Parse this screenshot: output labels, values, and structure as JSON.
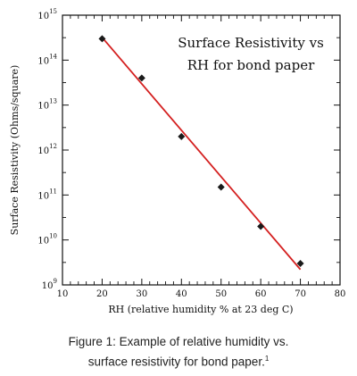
{
  "chart_data": {
    "type": "scatter",
    "title_lines": [
      "Surface Resistivity vs",
      "RH for bond paper"
    ],
    "xlabel": "RH (relative humidity % at 23 deg C)",
    "ylabel": "Surface Resistivity (Ohms/square)",
    "xlim": [
      10,
      80
    ],
    "ylim": [
      1000000000.0,
      1000000000000000.0
    ],
    "yscale": "log",
    "x_ticks": [
      "10",
      "20",
      "30",
      "40",
      "50",
      "60",
      "70",
      "80"
    ],
    "y_ticks": [
      {
        "base": "10",
        "exp": "9"
      },
      {
        "base": "10",
        "exp": "10"
      },
      {
        "base": "10",
        "exp": "11"
      },
      {
        "base": "10",
        "exp": "12"
      },
      {
        "base": "10",
        "exp": "13"
      },
      {
        "base": "10",
        "exp": "14"
      },
      {
        "base": "10",
        "exp": "15"
      }
    ],
    "series": [
      {
        "x": [
          20,
          30,
          40,
          50,
          60,
          70
        ],
        "y": [
          300000000000000.0,
          40000000000000.0,
          2000000000000.0,
          150000000000.0,
          20000000000.0,
          3000000000.0
        ],
        "color": "#1a1a1a",
        "marker": "diamond"
      }
    ],
    "trendline": {
      "x": [
        20,
        70
      ],
      "y": [
        320000000000000.0,
        2200000000.0
      ],
      "color": "#d42020"
    },
    "grid": false,
    "legend": "none"
  },
  "caption": {
    "line1": "Figure 1: Example of relative humidity vs.",
    "line2": "surface resistivity for bond paper.",
    "footnote_mark": "1"
  }
}
